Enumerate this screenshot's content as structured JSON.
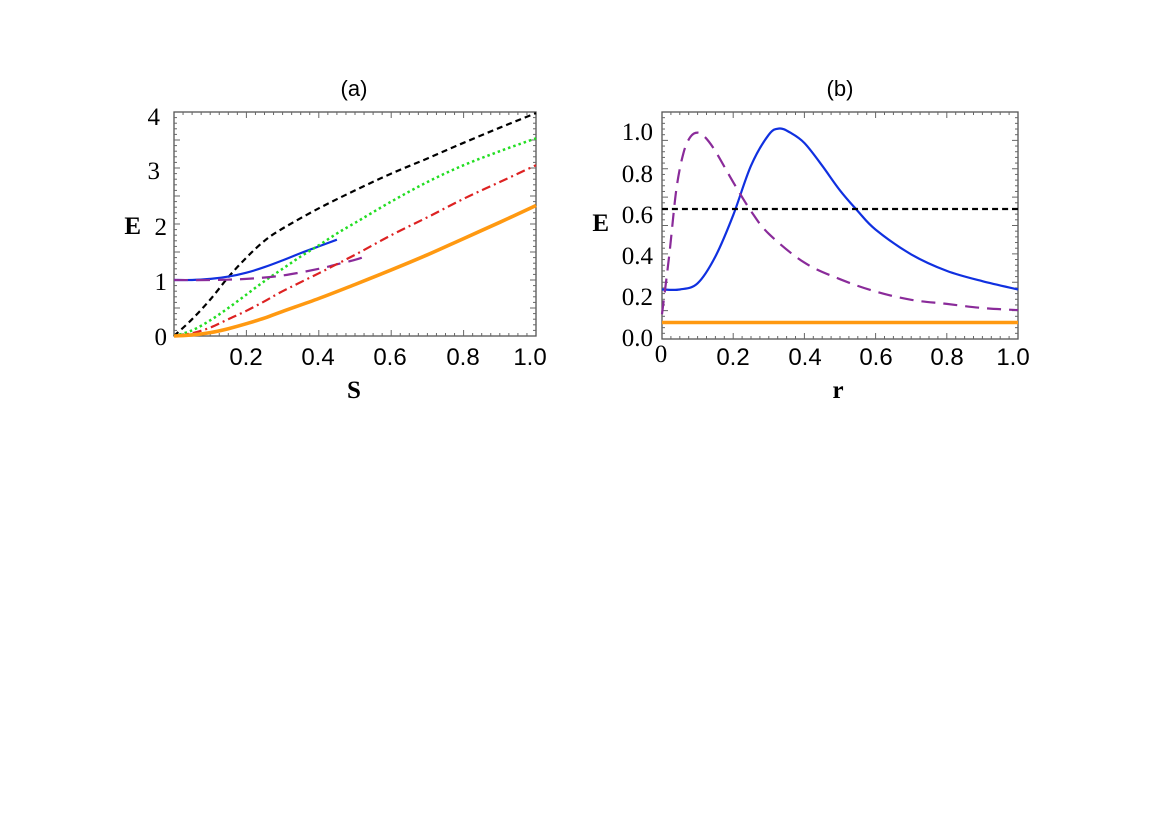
{
  "chart_data": [
    {
      "type": "line",
      "title": "(a)",
      "xlabel": "S",
      "ylabel": "E",
      "xlim": [
        0,
        1.0
      ],
      "ylim": [
        0,
        4
      ],
      "xticks": [
        "0.2",
        "0.4",
        "0.6",
        "0.8",
        "1.0"
      ],
      "yticks": [
        "0",
        "1",
        "2",
        "3",
        "4"
      ],
      "series": [
        {
          "name": "black-dashed",
          "color": "#000000",
          "style": "dashed",
          "x": [
            0,
            0.05,
            0.1,
            0.15,
            0.2,
            0.25,
            0.3,
            0.4,
            0.5,
            0.6,
            0.7,
            0.8,
            0.9,
            1.0
          ],
          "y": [
            0,
            0.3,
            0.65,
            1.05,
            1.4,
            1.7,
            1.92,
            2.28,
            2.6,
            2.9,
            3.17,
            3.45,
            3.72,
            3.98
          ]
        },
        {
          "name": "blue-solid",
          "color": "#1030e0",
          "style": "solid",
          "x": [
            0,
            0.05,
            0.1,
            0.15,
            0.2,
            0.25,
            0.3,
            0.35,
            0.4,
            0.45
          ],
          "y": [
            1.0,
            1.0,
            1.02,
            1.06,
            1.13,
            1.23,
            1.35,
            1.48,
            1.6,
            1.72
          ]
        },
        {
          "name": "green-dotted",
          "color": "#22dd22",
          "style": "dotted",
          "x": [
            0,
            0.05,
            0.1,
            0.15,
            0.2,
            0.25,
            0.3,
            0.35,
            0.4,
            0.45,
            0.5,
            0.6,
            0.7,
            0.8,
            0.9,
            1.0
          ],
          "y": [
            0,
            0.1,
            0.28,
            0.5,
            0.74,
            0.98,
            1.2,
            1.42,
            1.62,
            1.83,
            2.02,
            2.4,
            2.75,
            3.05,
            3.3,
            3.53
          ]
        },
        {
          "name": "purple-dashed",
          "color": "#8a2b9a",
          "style": "longdash",
          "x": [
            0,
            0.1,
            0.2,
            0.3,
            0.4,
            0.45,
            0.5,
            0.52
          ],
          "y": [
            1.0,
            1.0,
            1.02,
            1.08,
            1.2,
            1.28,
            1.36,
            1.4
          ]
        },
        {
          "name": "red-dashdot",
          "color": "#dd2222",
          "style": "dashdot",
          "x": [
            0,
            0.05,
            0.1,
            0.15,
            0.2,
            0.25,
            0.3,
            0.4,
            0.5,
            0.6,
            0.7,
            0.8,
            0.9,
            1.0
          ],
          "y": [
            0,
            0.05,
            0.15,
            0.3,
            0.45,
            0.62,
            0.8,
            1.12,
            1.45,
            1.8,
            2.12,
            2.45,
            2.75,
            3.05
          ]
        },
        {
          "name": "orange-solid",
          "color": "#ff9911",
          "style": "thick",
          "x": [
            0,
            0.05,
            0.1,
            0.15,
            0.2,
            0.25,
            0.3,
            0.4,
            0.5,
            0.6,
            0.7,
            0.8,
            0.9,
            1.0
          ],
          "y": [
            0,
            0.02,
            0.06,
            0.13,
            0.22,
            0.32,
            0.44,
            0.67,
            0.92,
            1.18,
            1.45,
            1.74,
            2.03,
            2.33
          ]
        }
      ]
    },
    {
      "type": "line",
      "title": "(b)",
      "xlabel": "r",
      "ylabel": "E",
      "xlim": [
        0,
        1.0
      ],
      "ylim": [
        0,
        1.1
      ],
      "xticks": [
        "0",
        "0.2",
        "0.4",
        "0.6",
        "0.8",
        "1.0"
      ],
      "yticks": [
        "0.0",
        "0.2",
        "0.4",
        "0.6",
        "0.8",
        "1.0"
      ],
      "series": [
        {
          "name": "blue-solid",
          "color": "#1030e0",
          "style": "solid",
          "x": [
            0,
            0.05,
            0.1,
            0.15,
            0.2,
            0.25,
            0.3,
            0.33,
            0.36,
            0.4,
            0.45,
            0.5,
            0.55,
            0.6,
            0.7,
            0.8,
            0.9,
            1.0
          ],
          "y": [
            0.24,
            0.24,
            0.27,
            0.4,
            0.6,
            0.84,
            0.99,
            1.02,
            1.0,
            0.95,
            0.84,
            0.72,
            0.62,
            0.53,
            0.41,
            0.33,
            0.28,
            0.24
          ]
        },
        {
          "name": "purple-dashed",
          "color": "#8a2b9a",
          "style": "longdash",
          "x": [
            0,
            0.02,
            0.04,
            0.06,
            0.08,
            0.1,
            0.12,
            0.15,
            0.2,
            0.25,
            0.3,
            0.4,
            0.5,
            0.6,
            0.7,
            0.8,
            0.9,
            1.0
          ],
          "y": [
            0.12,
            0.4,
            0.72,
            0.9,
            0.98,
            1.0,
            0.98,
            0.91,
            0.76,
            0.62,
            0.51,
            0.37,
            0.29,
            0.23,
            0.19,
            0.17,
            0.15,
            0.14
          ]
        },
        {
          "name": "black-dashed",
          "color": "#000000",
          "style": "dashed",
          "x": [
            0,
            1.0
          ],
          "y": [
            0.63,
            0.63
          ]
        },
        {
          "name": "orange-solid",
          "color": "#ff9911",
          "style": "thick",
          "x": [
            0,
            1.0
          ],
          "y": [
            0.08,
            0.08
          ]
        }
      ]
    }
  ]
}
